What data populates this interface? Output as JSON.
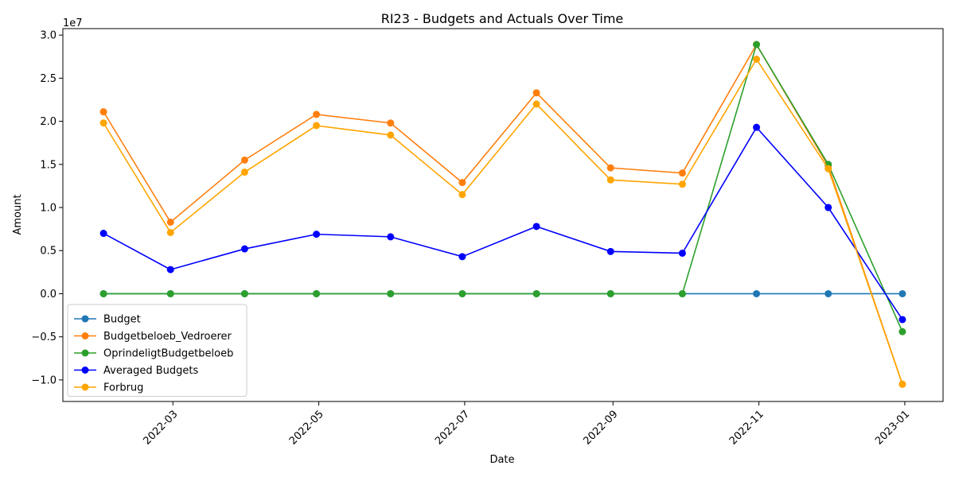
{
  "chart_data": {
    "type": "line",
    "title": "RI23 - Budgets and Actuals Over Time",
    "xlabel": "Date",
    "ylabel": "Amount",
    "y_offset_label": "1e7",
    "y_multiplier": 10000000,
    "x": [
      "2022-01-31",
      "2022-02-28",
      "2022-03-31",
      "2022-04-30",
      "2022-05-31",
      "2022-06-30",
      "2022-07-31",
      "2022-08-31",
      "2022-09-30",
      "2022-10-31",
      "2022-11-30",
      "2022-12-31"
    ],
    "xlim": [
      "2022-01-14",
      "2023-01-17"
    ],
    "x_ticks": [
      "2022-03-01",
      "2022-05-01",
      "2022-07-01",
      "2022-09-01",
      "2022-11-01",
      "2023-01-01"
    ],
    "x_tick_labels": [
      "2022-03",
      "2022-05",
      "2022-07",
      "2022-09",
      "2022-11",
      "2023-01"
    ],
    "ylim": [
      -12500000,
      30750000
    ],
    "y_ticks": [
      -10000000,
      -5000000,
      0,
      5000000,
      10000000,
      15000000,
      20000000,
      25000000,
      30000000
    ],
    "y_tick_labels": [
      "−1.0",
      "−0.5",
      "0.0",
      "0.5",
      "1.0",
      "1.5",
      "2.0",
      "2.5",
      "3.0"
    ],
    "grid": false,
    "legend_position": "lower-left",
    "series": [
      {
        "name": "Budget",
        "color": "#1f77b4",
        "marker": "circle",
        "values": [
          0,
          0,
          0,
          0,
          0,
          0,
          0,
          0,
          0,
          0,
          0,
          0
        ]
      },
      {
        "name": "Budgetbeloeb_Vedroerer",
        "color": "#ff7f0e",
        "marker": "circle",
        "values": [
          21100000,
          8300000,
          15500000,
          20800000,
          19800000,
          12900000,
          23300000,
          14600000,
          14000000,
          28900000,
          14800000,
          -10500000
        ]
      },
      {
        "name": "OprindeligtBudgetbeloeb",
        "color": "#2ca02c",
        "marker": "circle",
        "values": [
          0,
          0,
          0,
          0,
          0,
          0,
          0,
          0,
          0,
          28900000,
          15000000,
          -4400000
        ]
      },
      {
        "name": "Averaged Budgets",
        "color": "#0000ff",
        "marker": "circle",
        "values": [
          7000000,
          2800000,
          5200000,
          6900000,
          6600000,
          4300000,
          7800000,
          4900000,
          4700000,
          19300000,
          10000000,
          -3000000
        ]
      },
      {
        "name": "Forbrug",
        "color": "#ffa500",
        "marker": "circle",
        "values": [
          19800000,
          7100000,
          14100000,
          19500000,
          18400000,
          11500000,
          22000000,
          13200000,
          12700000,
          27200000,
          14500000,
          -10500000
        ]
      }
    ]
  }
}
